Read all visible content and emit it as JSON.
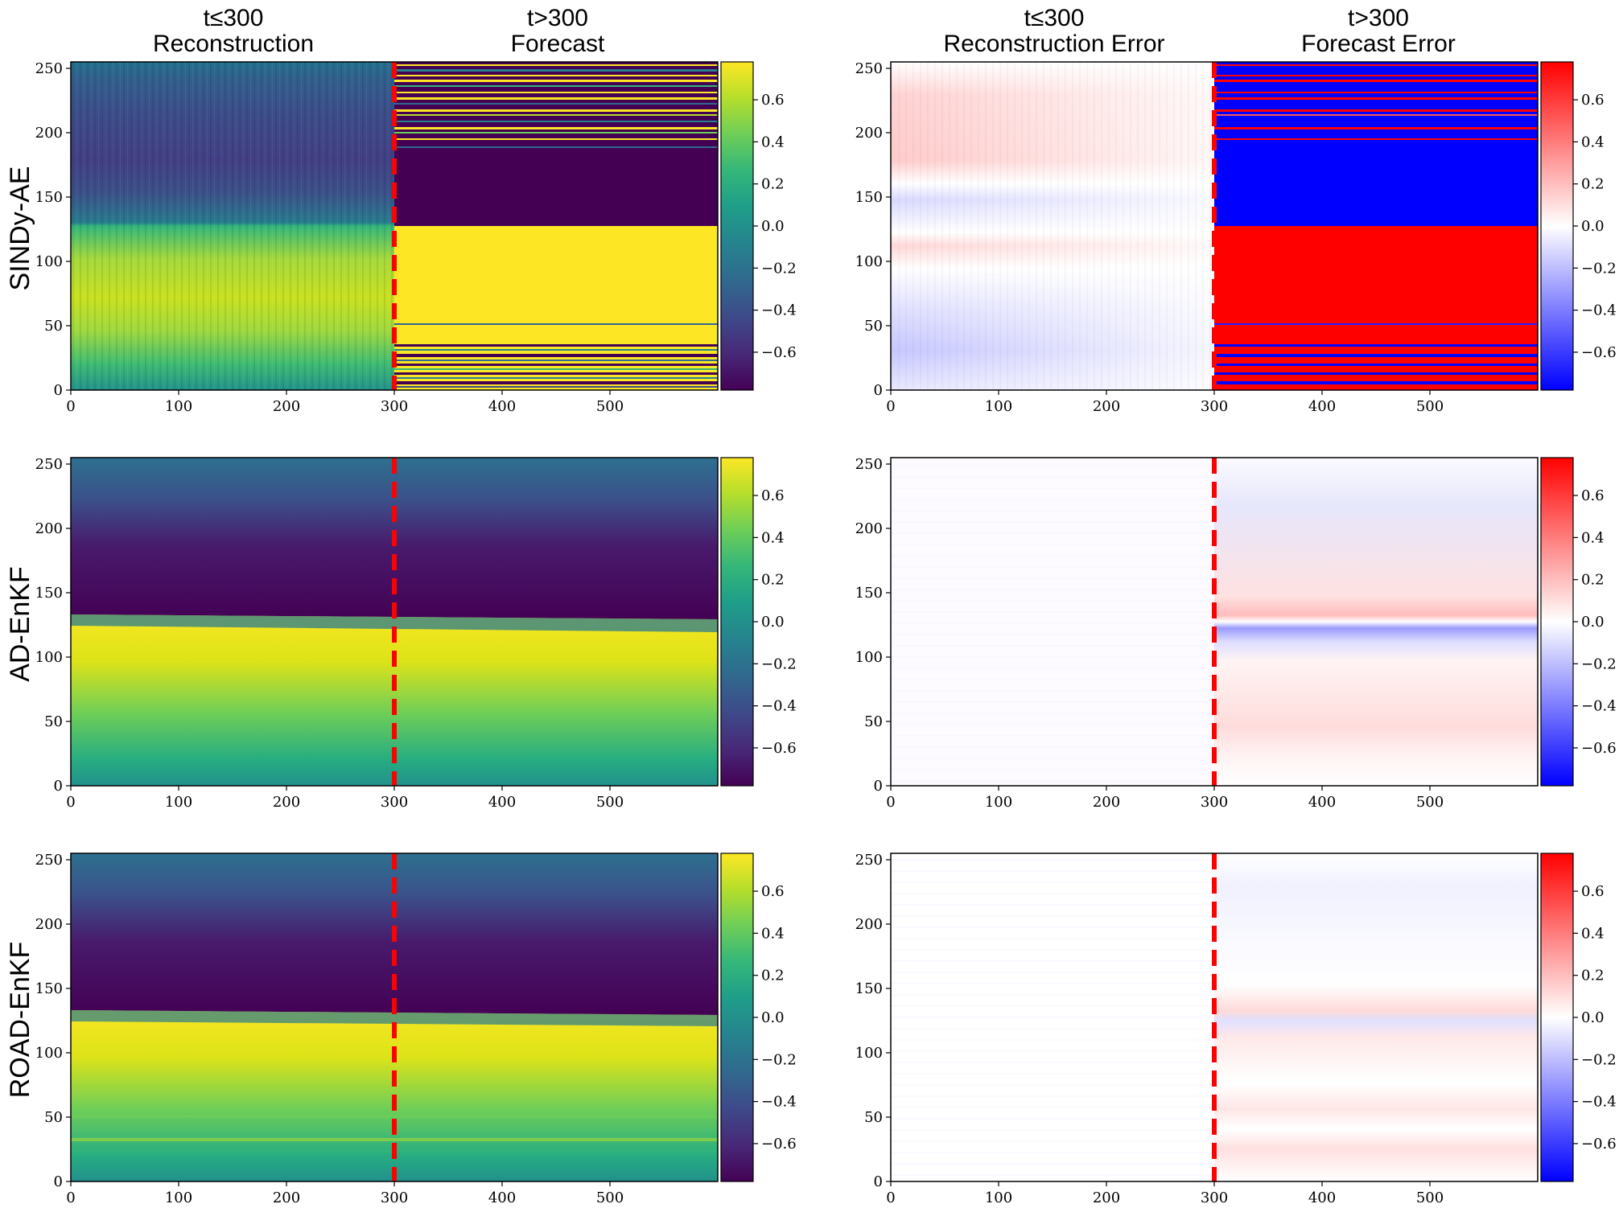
{
  "column_titles": [
    {
      "line1": "t≤300",
      "line2": "Reconstruction"
    },
    {
      "line1": "t>300",
      "line2": "Forecast"
    },
    {
      "line1": "t≤300",
      "line2": "Reconstruction Error"
    },
    {
      "line1": "t>300",
      "line2": "Forecast Error"
    }
  ],
  "row_labels": [
    "SINDy-AE",
    "AD-EnKF",
    "ROAD-EnKF"
  ],
  "colormaps": {
    "viridis": [
      "#440154",
      "#482878",
      "#3e4989",
      "#31688e",
      "#26828e",
      "#1f9e89",
      "#35b779",
      "#6ece58",
      "#b5de2b",
      "#fde725"
    ],
    "bwr": [
      "#0000ff",
      "#ffffff",
      "#ff0000"
    ]
  },
  "chart_data": [
    {
      "type": "heatmap",
      "panel": "sindy-ae-field",
      "row": "SINDy-AE",
      "colormap": "viridis",
      "x_range": [
        0,
        600
      ],
      "y_range": [
        0,
        255
      ],
      "vmin": -0.78,
      "vmax": 0.78,
      "xticks": [
        0,
        100,
        200,
        300,
        400,
        500
      ],
      "yticks": [
        0,
        50,
        100,
        150,
        200,
        250
      ],
      "colorbar_ticks": [
        -0.6,
        -0.4,
        -0.2,
        0.0,
        0.2,
        0.4,
        0.6
      ],
      "split_line_x": 300,
      "description_values": {
        "reconstruction_upper": -0.3,
        "reconstruction_lower": 0.35,
        "forecast_upper": -0.78,
        "forecast_lower": 0.78
      }
    },
    {
      "type": "heatmap",
      "panel": "sindy-ae-error",
      "row": "SINDy-AE",
      "colormap": "bwr",
      "x_range": [
        0,
        600
      ],
      "y_range": [
        0,
        255
      ],
      "vmin": -0.78,
      "vmax": 0.78,
      "xticks": [
        0,
        100,
        200,
        300,
        400,
        500
      ],
      "yticks": [
        0,
        50,
        100,
        150,
        200,
        250
      ],
      "colorbar_ticks": [
        -0.6,
        -0.4,
        -0.2,
        0.0,
        0.2,
        0.4,
        0.6
      ],
      "split_line_x": 300
    },
    {
      "type": "heatmap",
      "panel": "ad-enkf-field",
      "row": "AD-EnKF",
      "colormap": "viridis",
      "x_range": [
        0,
        600
      ],
      "y_range": [
        0,
        255
      ],
      "vmin": -0.78,
      "vmax": 0.78,
      "xticks": [
        0,
        100,
        200,
        300,
        400,
        500
      ],
      "yticks": [
        0,
        50,
        100,
        150,
        200,
        250
      ],
      "colorbar_ticks": [
        -0.6,
        -0.4,
        -0.2,
        0.0,
        0.2,
        0.4,
        0.6
      ],
      "split_line_x": 300,
      "front_y": {
        "at_x0": 128,
        "at_x600": 126
      }
    },
    {
      "type": "heatmap",
      "panel": "ad-enkf-error",
      "row": "AD-EnKF",
      "colormap": "bwr",
      "x_range": [
        0,
        600
      ],
      "y_range": [
        0,
        255
      ],
      "vmin": -0.78,
      "vmax": 0.78,
      "xticks": [
        0,
        100,
        200,
        300,
        400,
        500
      ],
      "yticks": [
        0,
        50,
        100,
        150,
        200,
        250
      ],
      "colorbar_ticks": [
        -0.6,
        -0.4,
        -0.2,
        0.0,
        0.2,
        0.4,
        0.6
      ],
      "split_line_x": 300
    },
    {
      "type": "heatmap",
      "panel": "road-enkf-field",
      "row": "ROAD-EnKF",
      "colormap": "viridis",
      "x_range": [
        0,
        600
      ],
      "y_range": [
        0,
        255
      ],
      "vmin": -0.78,
      "vmax": 0.78,
      "xticks": [
        0,
        100,
        200,
        300,
        400,
        500
      ],
      "yticks": [
        0,
        50,
        100,
        150,
        200,
        250
      ],
      "colorbar_ticks": [
        -0.6,
        -0.4,
        -0.2,
        0.0,
        0.2,
        0.4,
        0.6
      ],
      "split_line_x": 300,
      "front_y": {
        "at_x0": 128,
        "at_x600": 126
      }
    },
    {
      "type": "heatmap",
      "panel": "road-enkf-error",
      "row": "ROAD-EnKF",
      "colormap": "bwr",
      "x_range": [
        0,
        600
      ],
      "y_range": [
        0,
        255
      ],
      "vmin": -0.78,
      "vmax": 0.78,
      "xticks": [
        0,
        100,
        200,
        300,
        400,
        500
      ],
      "yticks": [
        0,
        50,
        100,
        150,
        200,
        250
      ],
      "colorbar_ticks": [
        -0.6,
        -0.4,
        -0.2,
        0.0,
        0.2,
        0.4,
        0.6
      ],
      "split_line_x": 300
    }
  ]
}
